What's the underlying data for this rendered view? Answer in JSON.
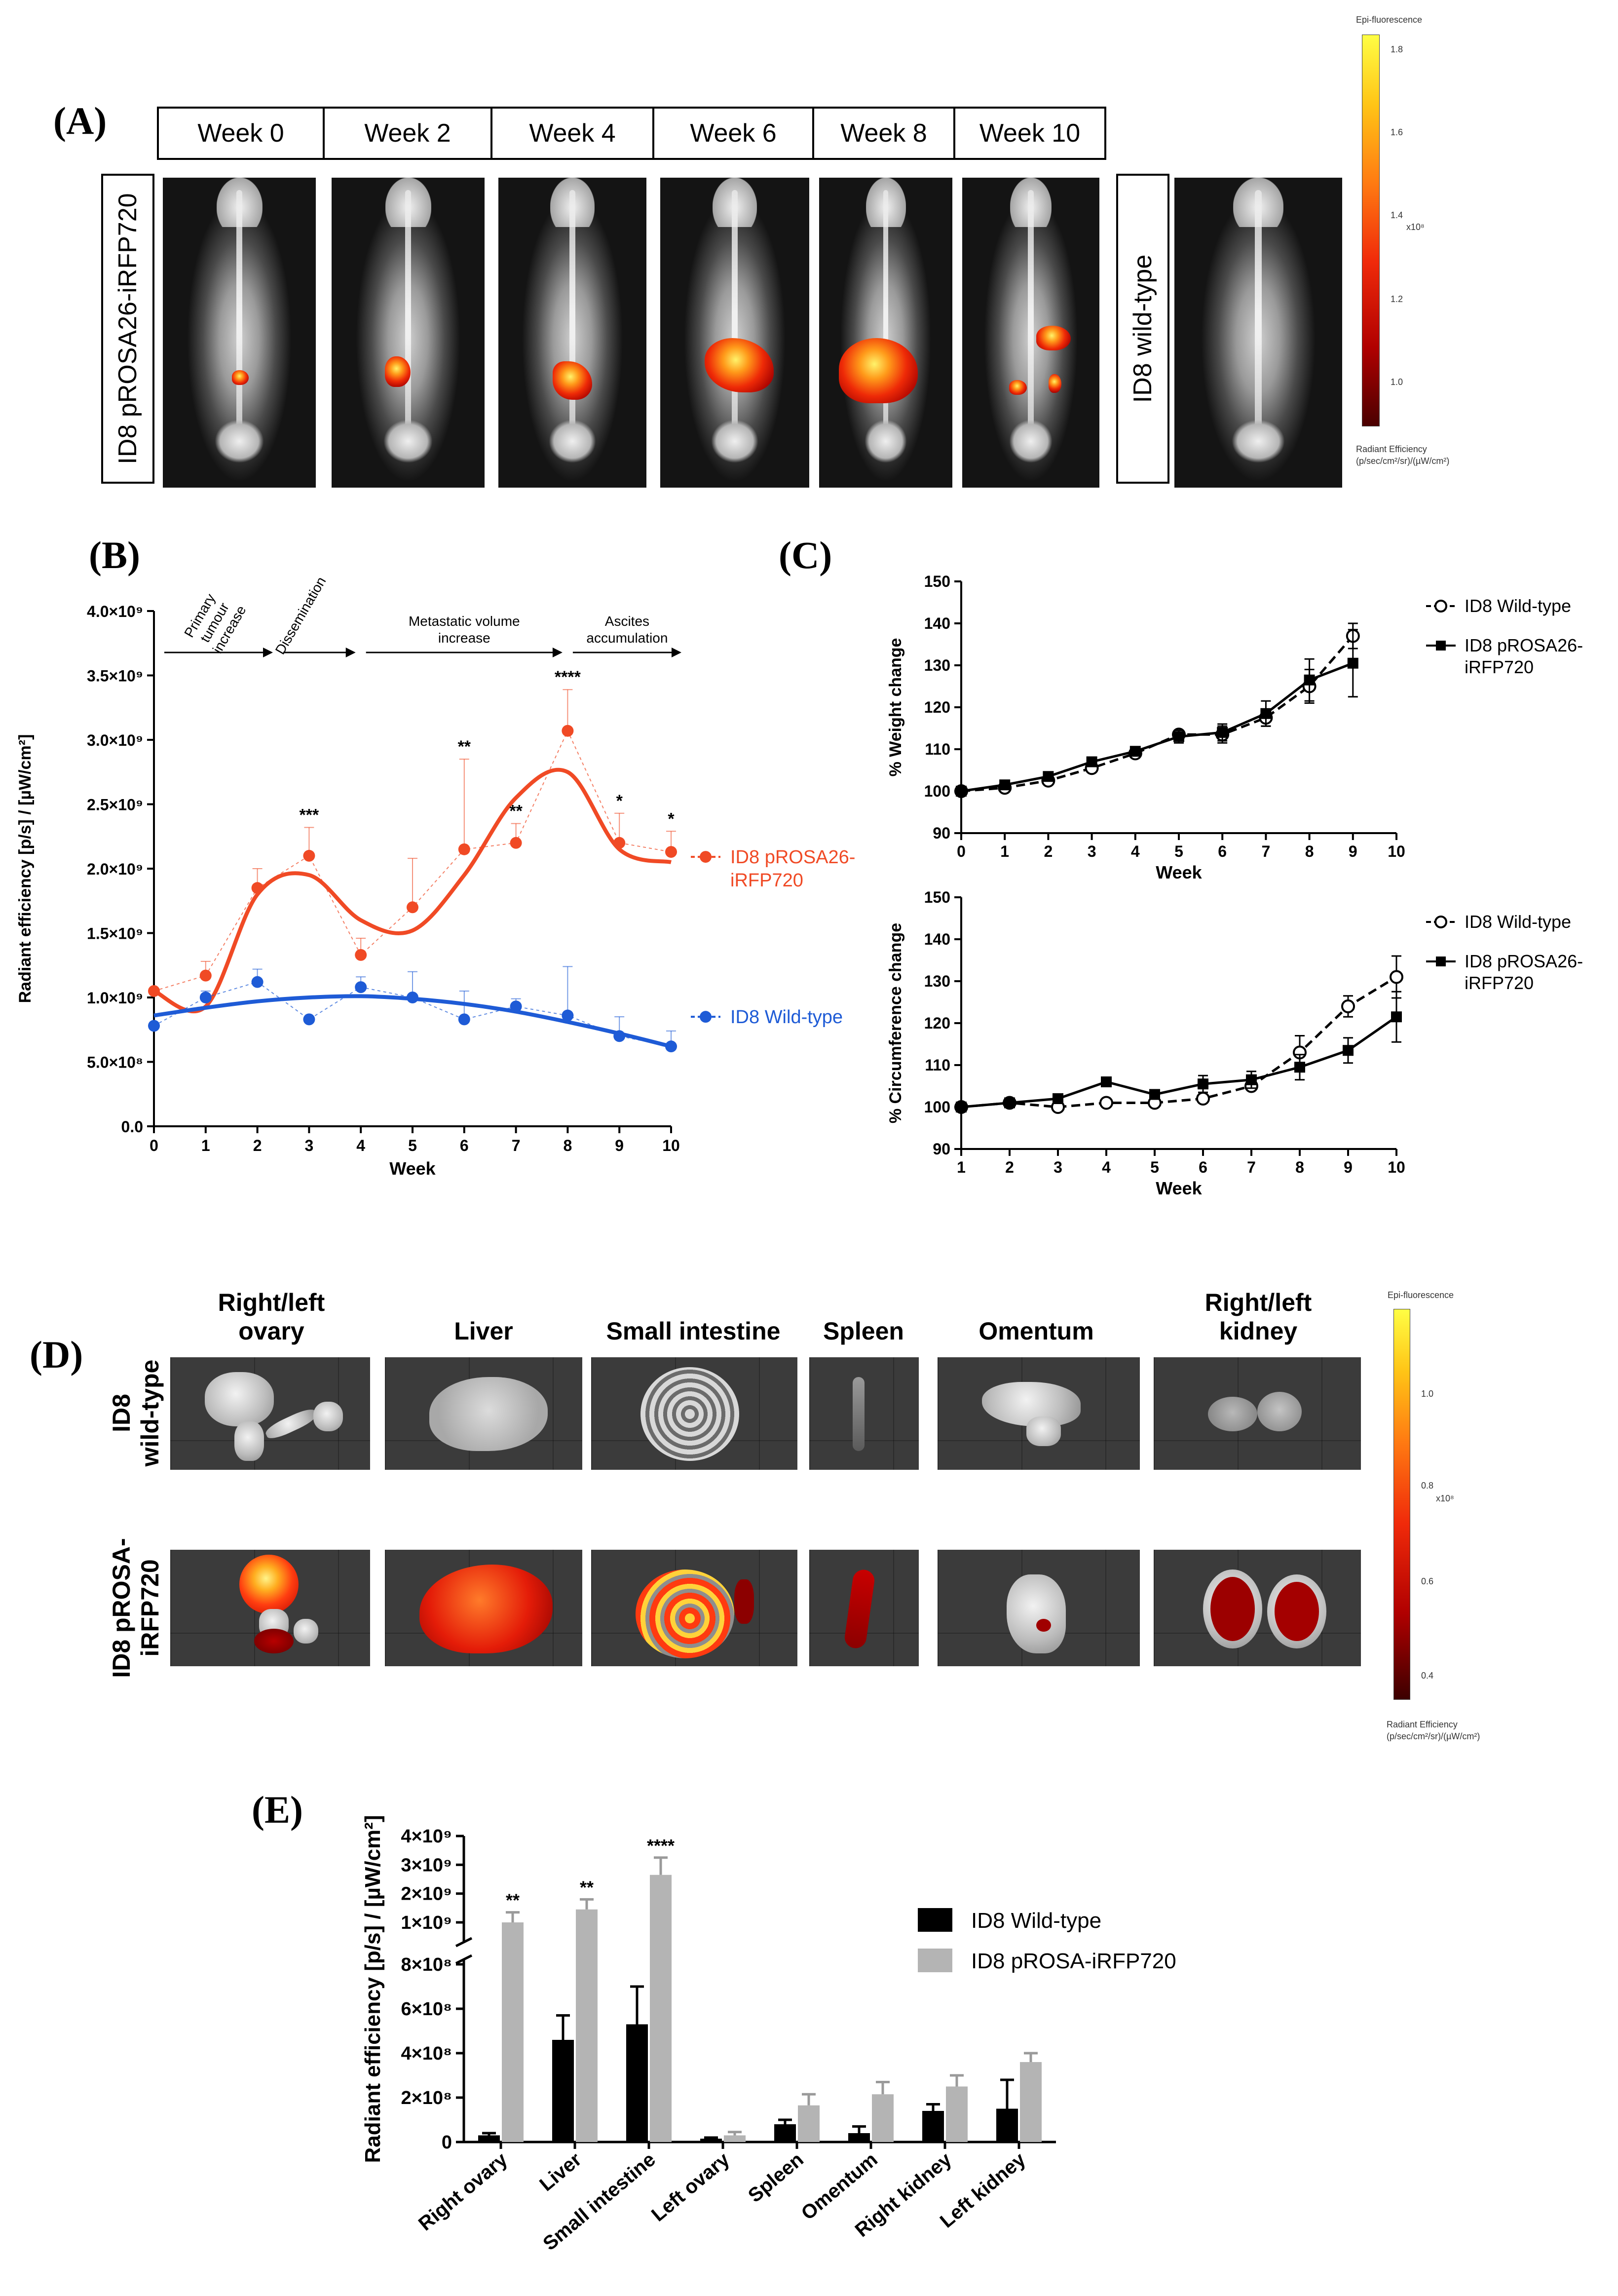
{
  "panel_a": {
    "letter": "(A)",
    "weeks": [
      "Week 0",
      "Week 2",
      "Week 4",
      "Week 6",
      "Week 8",
      "Week 10"
    ],
    "label_irfp": "ID8 pROSA26-iRFP720",
    "label_wt": "ID8 wild-type",
    "colorbar": {
      "title": "Epi-fluorescence",
      "ticks": [
        "1.8",
        "1.6",
        "1.4",
        "1.2",
        "1.0"
      ],
      "exponent": "x10⁸",
      "unit_line1": "Radiant Efficiency",
      "unit_line2": "(p/sec/cm²/sr)/(µW/cm²)"
    }
  },
  "panel_b": {
    "letter": "(B)"
  },
  "panel_c": {
    "letter": "(C)"
  },
  "panel_d": {
    "letter": "(D)",
    "columns": [
      "Right/left ovary",
      "Liver",
      "Small intestine",
      "Spleen",
      "Omentum",
      "Right/left kidney"
    ],
    "row_wt_line1": "ID8",
    "row_wt_line2": "wild-type",
    "row_irfp_line1": "ID8 pROSA-",
    "row_irfp_line2": "iRFP720",
    "colorbar": {
      "title": "Epi-fluorescence",
      "ticks": [
        "1.0",
        "0.8",
        "0.6",
        "0.4"
      ],
      "exponent": "x10⁸",
      "unit_line1": "Radiant Efficiency",
      "unit_line2": "(p/sec/cm²/sr)/(µW/cm²)"
    }
  },
  "panel_e": {
    "letter": "(E)"
  },
  "chart_data": [
    {
      "id": "B",
      "type": "line",
      "xlabel": "Week",
      "ylabel": "Radiant efficiency [p/s] / [µW/cm²]",
      "xlim": [
        0,
        10
      ],
      "ylim": [
        0,
        4000000000
      ],
      "x_ticks": [
        "0",
        "1",
        "2",
        "3",
        "4",
        "5",
        "6",
        "7",
        "8",
        "9",
        "10"
      ],
      "y_ticks": [
        "0.0",
        "5.0×10⁸",
        "1.0×10⁹",
        "1.5×10⁹",
        "2.0×10⁹",
        "2.5×10⁹",
        "3.0×10⁹",
        "3.5×10⁹",
        "4.0×10⁹"
      ],
      "y_tick_values": [
        0,
        500000000,
        1000000000,
        1500000000,
        2000000000,
        2500000000,
        3000000000,
        3500000000,
        4000000000
      ],
      "x": [
        0,
        1,
        2,
        3,
        4,
        5,
        6,
        7,
        8,
        9,
        10
      ],
      "series": [
        {
          "name": "ID8 pROSA26-iRFP720",
          "legend_line1": "ID8 pROSA26-",
          "legend_line2": "iRFP720",
          "color": "#f04a25",
          "values": [
            1050000000,
            1170000000,
            1850000000,
            2100000000,
            1330000000,
            1700000000,
            2150000000,
            2200000000,
            3070000000,
            2200000000,
            2130000000
          ],
          "errors": [
            0,
            110000000,
            150000000,
            220000000,
            130000000,
            380000000,
            700000000,
            150000000,
            320000000,
            230000000,
            160000000
          ],
          "fit": [
            1050000000,
            930000000,
            1800000000,
            1950000000,
            1600000000,
            1520000000,
            1950000000,
            2550000000,
            2750000000,
            2150000000,
            2050000000
          ]
        },
        {
          "name": "ID8 Wild-type",
          "legend_line1": "ID8 Wild-type",
          "color": "#1e5bd6",
          "values": [
            780000000,
            1000000000,
            1120000000,
            830000000,
            1080000000,
            1000000000,
            830000000,
            930000000,
            860000000,
            700000000,
            620000000
          ],
          "errors": [
            0,
            50000000,
            100000000,
            0,
            80000000,
            200000000,
            220000000,
            60000000,
            380000000,
            150000000,
            120000000
          ],
          "fit": [
            860000000,
            920000000,
            970000000,
            1000000000,
            1010000000,
            990000000,
            950000000,
            890000000,
            810000000,
            720000000,
            620000000
          ]
        }
      ],
      "significance": [
        {
          "x": 3,
          "label": "***"
        },
        {
          "x": 6,
          "label": "**"
        },
        {
          "x": 7,
          "label": "**"
        },
        {
          "x": 8,
          "label": "****"
        },
        {
          "x": 9,
          "label": "*"
        },
        {
          "x": 10,
          "label": "*"
        }
      ],
      "phases": [
        {
          "label_lines": [
            "Primary",
            "tumour",
            "increase"
          ],
          "x_start": 0.2,
          "x_end": 2.3
        },
        {
          "label_lines": [
            "Dissemination"
          ],
          "x_start": 2.5,
          "x_end": 3.9
        },
        {
          "label_lines": [
            "Metastatic volume",
            "increase"
          ],
          "x_start": 4.1,
          "x_end": 7.9
        },
        {
          "label_lines": [
            "Ascites",
            "accumulation"
          ],
          "x_start": 8.1,
          "x_end": 10.2
        }
      ]
    },
    {
      "id": "C-top",
      "type": "line",
      "xlabel": "Week",
      "ylabel": "% Weight change",
      "xlim": [
        0,
        10
      ],
      "ylim": [
        90,
        150
      ],
      "x_ticks": [
        "0",
        "1",
        "2",
        "3",
        "4",
        "5",
        "6",
        "7",
        "8",
        "9",
        "10"
      ],
      "y_ticks": [
        "90",
        "100",
        "110",
        "120",
        "130",
        "140",
        "150"
      ],
      "x": [
        0,
        1,
        2,
        3,
        4,
        5,
        6,
        7,
        8,
        9
      ],
      "series": [
        {
          "name": "ID8 Wild-type",
          "legend_line1": "ID8 Wild-type",
          "marker": "open-circle",
          "dashed": true,
          "values": [
            100,
            100.8,
            102.5,
            105.5,
            109,
            113.5,
            113.5,
            117.5,
            125,
            137
          ],
          "errors": [
            0.5,
            0.8,
            0.8,
            1,
            1,
            1,
            2,
            2,
            4,
            3
          ]
        },
        {
          "name": "ID8 pROSA26-iRFP720",
          "legend_line1": "ID8 pROSA26-",
          "legend_line2": "iRFP720",
          "marker": "filled-square",
          "dashed": false,
          "values": [
            100,
            101.5,
            103.5,
            107,
            109.5,
            113,
            114,
            118.5,
            126.5,
            130.5
          ],
          "errors": [
            0.5,
            0.8,
            0.8,
            1,
            1,
            1.5,
            2,
            3,
            5,
            8
          ]
        }
      ]
    },
    {
      "id": "C-bottom",
      "type": "line",
      "xlabel": "Week",
      "ylabel": "% Circumference change",
      "xlim": [
        1,
        10
      ],
      "ylim": [
        90,
        150
      ],
      "x_ticks": [
        "1",
        "2",
        "3",
        "4",
        "5",
        "6",
        "7",
        "8",
        "9",
        "10"
      ],
      "y_ticks": [
        "90",
        "100",
        "110",
        "120",
        "130",
        "140",
        "150"
      ],
      "x": [
        1,
        2,
        3,
        4,
        5,
        6,
        7,
        8,
        9,
        10
      ],
      "series": [
        {
          "name": "ID8 Wild-type",
          "legend_line1": "ID8 Wild-type",
          "marker": "open-circle",
          "dashed": true,
          "values": [
            100,
            101,
            100,
            101,
            101,
            102,
            105,
            113,
            124,
            131
          ],
          "errors": [
            0.5,
            0.5,
            0.5,
            0.5,
            1,
            1,
            1,
            4,
            2.5,
            5
          ]
        },
        {
          "name": "ID8 pROSA26-iRFP720",
          "legend_line1": "ID8 pROSA26-",
          "legend_line2": "iRFP720",
          "marker": "filled-square",
          "dashed": false,
          "values": [
            100,
            101,
            102,
            106,
            103,
            105.5,
            106.5,
            109.5,
            113.5,
            121.5
          ],
          "errors": [
            0.5,
            0.8,
            0.8,
            1,
            1,
            2,
            2,
            3,
            3,
            6
          ]
        }
      ]
    },
    {
      "id": "E",
      "type": "bar",
      "ylabel": "Radiant efficiency [p/s] / [µW/cm²]",
      "categories": [
        "Right ovary",
        "Liver",
        "Small intestine",
        "Left ovary",
        "Spleen",
        "Omentum",
        "Right kidney",
        "Left kidney"
      ],
      "y_ticks_lower": [
        "0",
        "2×10⁸",
        "4×10⁸",
        "6×10⁸",
        "8×10⁸"
      ],
      "y_ticks_lower_values": [
        0,
        200000000,
        400000000,
        600000000,
        800000000
      ],
      "y_ticks_upper": [
        "1×10⁹",
        "2×10⁹",
        "3×10⁹",
        "4×10⁹"
      ],
      "y_ticks_upper_values": [
        1000000000,
        2000000000,
        3000000000,
        4000000000
      ],
      "ylim_lower": [
        0,
        800000000
      ],
      "ylim_upper": [
        800000000,
        4000000000
      ],
      "series": [
        {
          "name": "ID8 Wild-type",
          "color": "#000000",
          "values": [
            30000000,
            460000000,
            530000000,
            15000000,
            80000000,
            40000000,
            140000000,
            150000000
          ],
          "errors": [
            10000000,
            110000000,
            170000000,
            5000000,
            20000000,
            30000000,
            30000000,
            130000000
          ]
        },
        {
          "name": "ID8 pROSA-iRFP720",
          "color": "#b4b4b4",
          "values": [
            1000000000,
            1450000000,
            2650000000,
            30000000,
            165000000,
            215000000,
            250000000,
            360000000
          ],
          "errors": [
            350000000,
            350000000,
            600000000,
            15000000,
            50000000,
            55000000,
            50000000,
            40000000
          ]
        }
      ],
      "significance": [
        {
          "category_index": 0,
          "label": "**"
        },
        {
          "category_index": 1,
          "label": "**"
        },
        {
          "category_index": 2,
          "label": "****"
        }
      ]
    }
  ]
}
